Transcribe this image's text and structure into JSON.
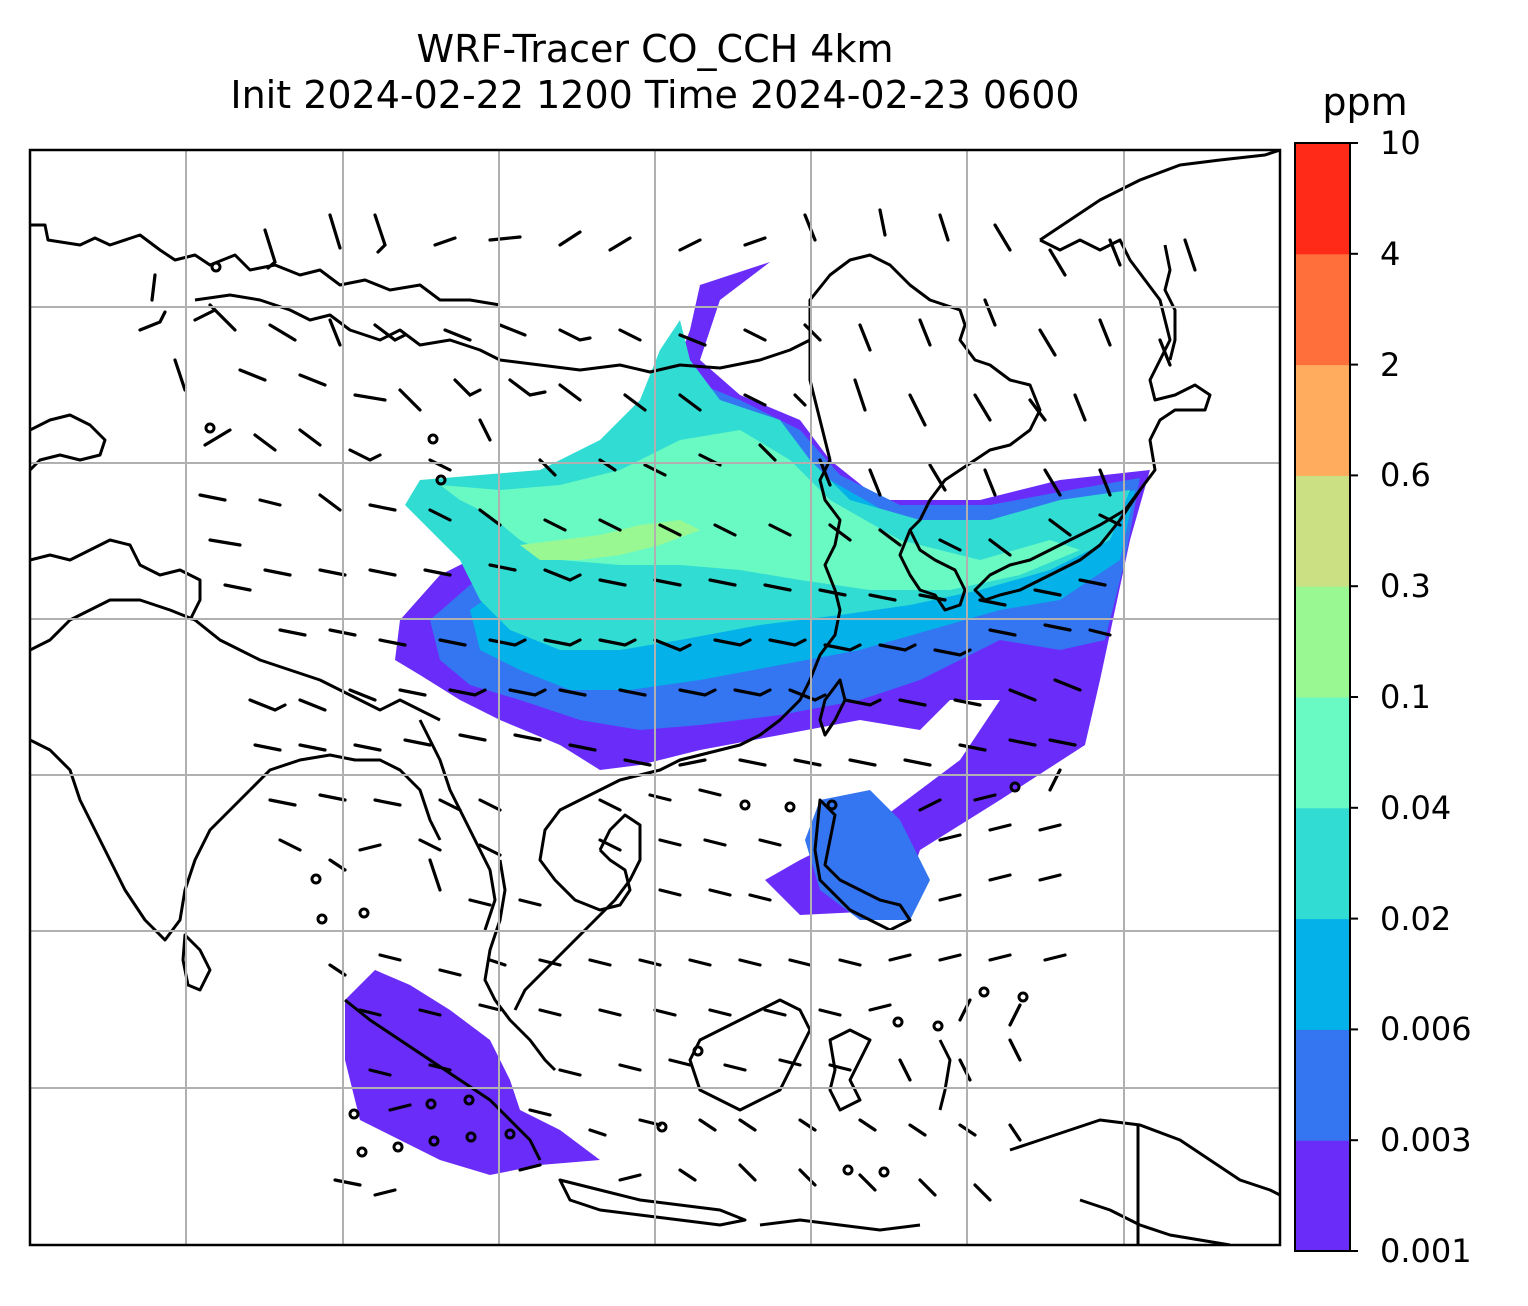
{
  "title": {
    "line1": "WRF-Tracer CO_CCH 4km",
    "line2": "Init 2024-02-22 1200 Time 2024-02-23 0600"
  },
  "colorbar": {
    "unit": "ppm",
    "ticks": [
      "0.001",
      "0.003",
      "0.006",
      "0.02",
      "0.04",
      "0.1",
      "0.3",
      "0.6",
      "2",
      "4",
      "10"
    ],
    "colors": [
      "#6a2cf9",
      "#3475f2",
      "#04b1e8",
      "#31dcd3",
      "#69fac3",
      "#9af893",
      "#cbe083",
      "#ffac5e",
      "#ff6f3b",
      "#ff2a17"
    ]
  },
  "map": {
    "gridlines": true,
    "features": [
      "coastlines",
      "country-borders",
      "wind-barbs",
      "tracer-concentration-fill"
    ]
  }
}
